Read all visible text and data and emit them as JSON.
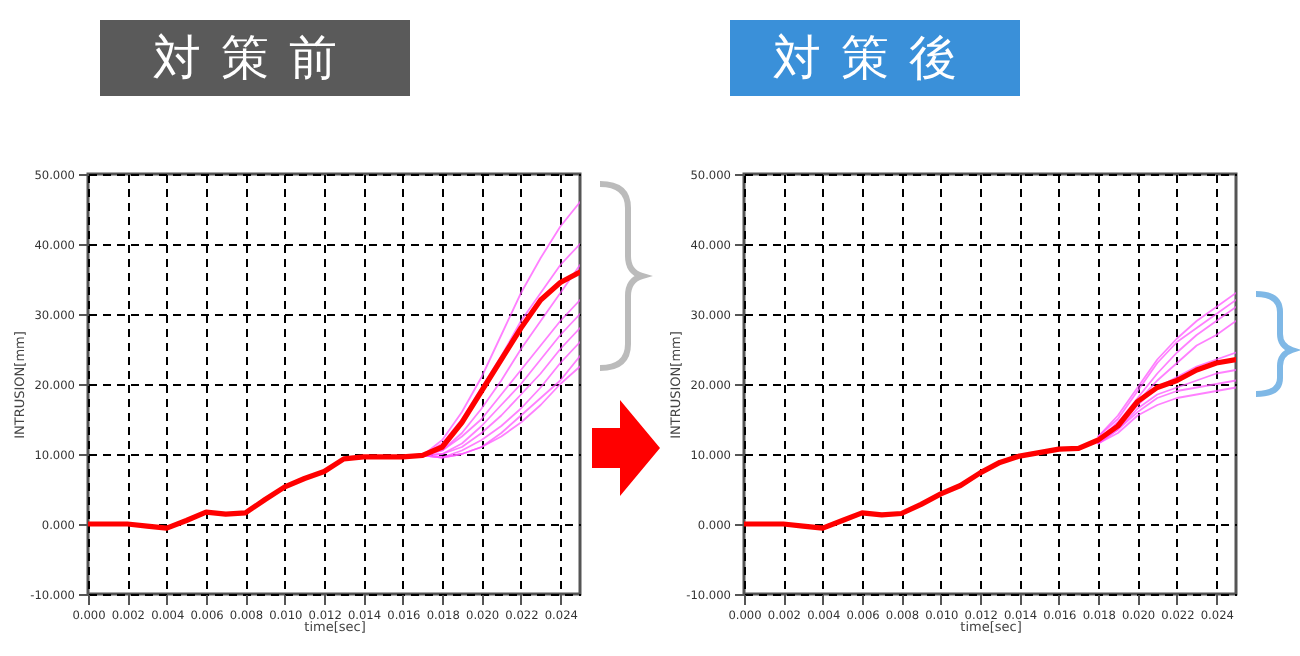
{
  "chart_data": [
    {
      "type": "line",
      "title": "対策前",
      "xlabel": "time[sec]",
      "ylabel": "INTRUSION[mm]",
      "x": [
        0,
        0.001,
        0.002,
        0.003,
        0.004,
        0.005,
        0.006,
        0.007,
        0.008,
        0.009,
        0.01,
        0.011,
        0.012,
        0.013,
        0.014,
        0.015,
        0.016,
        0.017,
        0.018,
        0.019,
        0.02,
        0.021,
        0.022,
        0.023,
        0.024,
        0.025
      ],
      "xlim": [
        0,
        0.025
      ],
      "xticks": [
        {
          "value": 0,
          "label": "0.000"
        },
        {
          "value": 0.002,
          "label": "0.002"
        },
        {
          "value": 0.004,
          "label": "0.004"
        },
        {
          "value": 0.006,
          "label": "0.006"
        },
        {
          "value": 0.008,
          "label": "0.008"
        },
        {
          "value": 0.01,
          "label": "0.010"
        },
        {
          "value": 0.012,
          "label": "0.012"
        },
        {
          "value": 0.014,
          "label": "0.014"
        },
        {
          "value": 0.016,
          "label": "0.016"
        },
        {
          "value": 0.018,
          "label": "0.018"
        },
        {
          "value": 0.02,
          "label": "0.020"
        },
        {
          "value": 0.022,
          "label": "0.022"
        },
        {
          "value": 0.024,
          "label": "0.024"
        }
      ],
      "ylim": [
        -10,
        50
      ],
      "yticks": [
        {
          "value": -10,
          "label": "-10.000"
        },
        {
          "value": 0,
          "label": "0.000"
        },
        {
          "value": 10,
          "label": "10.000"
        },
        {
          "value": 20,
          "label": "20.000"
        },
        {
          "value": 30,
          "label": "30.000"
        },
        {
          "value": 40,
          "label": "40.000"
        },
        {
          "value": 50,
          "label": "50.000"
        }
      ],
      "grid": true,
      "legend": false,
      "line_style": "solid",
      "series": [
        {
          "color": "#ff55ff",
          "values": [
            null,
            null,
            null,
            null,
            null,
            null,
            null,
            null,
            null,
            null,
            null,
            null,
            null,
            null,
            null,
            null,
            null,
            9.8,
            12,
            16,
            21,
            27,
            33,
            38,
            42.5,
            46
          ]
        },
        {
          "color": "#ff55ff",
          "values": [
            null,
            null,
            null,
            null,
            null,
            null,
            null,
            null,
            null,
            null,
            null,
            null,
            null,
            null,
            null,
            null,
            null,
            9.8,
            11.5,
            15,
            19.5,
            24,
            29,
            33,
            37,
            40
          ]
        },
        {
          "color": "#ff55ff",
          "values": [
            null,
            null,
            null,
            null,
            null,
            null,
            null,
            null,
            null,
            null,
            null,
            null,
            null,
            null,
            null,
            null,
            null,
            9.8,
            10.5,
            13,
            16.5,
            20.5,
            25,
            29,
            33,
            37
          ]
        },
        {
          "color": "#ff55ff",
          "values": [
            null,
            null,
            null,
            null,
            null,
            null,
            null,
            null,
            null,
            null,
            null,
            null,
            null,
            null,
            null,
            null,
            null,
            9.8,
            10.5,
            12.5,
            15,
            18.5,
            22,
            25.5,
            29,
            32
          ]
        },
        {
          "color": "#ff55ff",
          "values": [
            null,
            null,
            null,
            null,
            null,
            null,
            null,
            null,
            null,
            null,
            null,
            null,
            null,
            null,
            null,
            null,
            null,
            9.8,
            10,
            11.5,
            14,
            17,
            20,
            23.5,
            27,
            30
          ]
        },
        {
          "color": "#ff55ff",
          "values": [
            null,
            null,
            null,
            null,
            null,
            null,
            null,
            null,
            null,
            null,
            null,
            null,
            null,
            null,
            null,
            null,
            null,
            9.8,
            10,
            11,
            13,
            15.5,
            18.5,
            21.5,
            25,
            28
          ]
        },
        {
          "color": "#ff55ff",
          "values": [
            null,
            null,
            null,
            null,
            null,
            null,
            null,
            null,
            null,
            null,
            null,
            null,
            null,
            null,
            null,
            null,
            null,
            9.8,
            9.5,
            10.5,
            12,
            14,
            16.5,
            19.5,
            23,
            26
          ]
        },
        {
          "color": "#ff55ff",
          "values": [
            null,
            null,
            null,
            null,
            null,
            null,
            null,
            null,
            null,
            null,
            null,
            null,
            null,
            null,
            null,
            null,
            null,
            9.8,
            9.5,
            10,
            11,
            13,
            15.5,
            18,
            20.5,
            24
          ]
        },
        {
          "color": "#ff55ff",
          "values": [
            null,
            null,
            null,
            null,
            null,
            null,
            null,
            null,
            null,
            null,
            null,
            null,
            null,
            null,
            null,
            null,
            null,
            9.8,
            9.5,
            10,
            11,
            12.5,
            14.5,
            17,
            20,
            22.5
          ]
        },
        {
          "color": "#ff0000",
          "values": [
            0,
            0,
            0,
            -0.3,
            -0.6,
            0.5,
            1.7,
            1.4,
            1.6,
            3.5,
            5.3,
            6.5,
            7.5,
            9.3,
            9.6,
            9.6,
            9.6,
            9.8,
            11,
            14.5,
            19,
            23.5,
            28,
            32,
            34.5,
            36
          ]
        }
      ]
    },
    {
      "type": "line",
      "title": "対策後",
      "xlabel": "time[sec]",
      "ylabel": "INTRUSION[mm]",
      "x": [
        0,
        0.001,
        0.002,
        0.003,
        0.004,
        0.005,
        0.006,
        0.007,
        0.008,
        0.009,
        0.01,
        0.011,
        0.012,
        0.013,
        0.014,
        0.015,
        0.016,
        0.017,
        0.018,
        0.019,
        0.02,
        0.021,
        0.022,
        0.023,
        0.024,
        0.025
      ],
      "xlim": [
        0,
        0.025
      ],
      "xticks": [
        {
          "value": 0,
          "label": "0.000"
        },
        {
          "value": 0.002,
          "label": "0.002"
        },
        {
          "value": 0.004,
          "label": "0.004"
        },
        {
          "value": 0.006,
          "label": "0.006"
        },
        {
          "value": 0.008,
          "label": "0.008"
        },
        {
          "value": 0.01,
          "label": "0.010"
        },
        {
          "value": 0.012,
          "label": "0.012"
        },
        {
          "value": 0.014,
          "label": "0.014"
        },
        {
          "value": 0.016,
          "label": "0.016"
        },
        {
          "value": 0.018,
          "label": "0.018"
        },
        {
          "value": 0.02,
          "label": "0.020"
        },
        {
          "value": 0.022,
          "label": "0.022"
        },
        {
          "value": 0.024,
          "label": "0.024"
        }
      ],
      "ylim": [
        -10,
        50
      ],
      "yticks": [
        {
          "value": -10,
          "label": "-10.000"
        },
        {
          "value": 0,
          "label": "0.000"
        },
        {
          "value": 10,
          "label": "10.000"
        },
        {
          "value": 20,
          "label": "20.000"
        },
        {
          "value": 30,
          "label": "30.000"
        },
        {
          "value": 40,
          "label": "40.000"
        },
        {
          "value": 50,
          "label": "50.000"
        }
      ],
      "grid": true,
      "legend": false,
      "line_style": "solid",
      "series": [
        {
          "color": "#ff55ff",
          "values": [
            null,
            null,
            null,
            null,
            null,
            null,
            null,
            null,
            null,
            null,
            null,
            null,
            null,
            null,
            null,
            null,
            null,
            null,
            12.5,
            15.5,
            19.5,
            23.5,
            26.5,
            29,
            31,
            33
          ]
        },
        {
          "color": "#ff55ff",
          "values": [
            null,
            null,
            null,
            null,
            null,
            null,
            null,
            null,
            null,
            null,
            null,
            null,
            null,
            null,
            null,
            null,
            null,
            null,
            12.5,
            15,
            19,
            23,
            26,
            28,
            30,
            32
          ]
        },
        {
          "color": "#ff55ff",
          "values": [
            null,
            null,
            null,
            null,
            null,
            null,
            null,
            null,
            null,
            null,
            null,
            null,
            null,
            null,
            null,
            null,
            null,
            null,
            12,
            14.5,
            18,
            21.5,
            24.5,
            27,
            29,
            31
          ]
        },
        {
          "color": "#ff55ff",
          "values": [
            null,
            null,
            null,
            null,
            null,
            null,
            null,
            null,
            null,
            null,
            null,
            null,
            null,
            null,
            null,
            null,
            null,
            null,
            12,
            14.5,
            17.5,
            20.5,
            23,
            25.5,
            27,
            29
          ]
        },
        {
          "color": "#ff55ff",
          "values": [
            null,
            null,
            null,
            null,
            null,
            null,
            null,
            null,
            null,
            null,
            null,
            null,
            null,
            null,
            null,
            null,
            null,
            null,
            12,
            14,
            17,
            19.5,
            21,
            22.5,
            23.5,
            24.5
          ]
        },
        {
          "color": "#ff55ff",
          "values": [
            null,
            null,
            null,
            null,
            null,
            null,
            null,
            null,
            null,
            null,
            null,
            null,
            null,
            null,
            null,
            null,
            null,
            null,
            11.5,
            13.5,
            16.5,
            18.5,
            19.5,
            20.5,
            21.5,
            22
          ]
        },
        {
          "color": "#ff55ff",
          "values": [
            null,
            null,
            null,
            null,
            null,
            null,
            null,
            null,
            null,
            null,
            null,
            null,
            null,
            null,
            null,
            null,
            null,
            null,
            11.5,
            13.5,
            16,
            18,
            19,
            19.5,
            20,
            20.5
          ]
        },
        {
          "color": "#ff55ff",
          "values": [
            null,
            null,
            null,
            null,
            null,
            null,
            null,
            null,
            null,
            null,
            null,
            null,
            null,
            null,
            null,
            null,
            null,
            null,
            11.5,
            13,
            15.5,
            17,
            18,
            18.5,
            19,
            19.5
          ]
        },
        {
          "color": "#ff0000",
          "values": [
            0,
            0,
            0,
            -0.3,
            -0.6,
            0.5,
            1.6,
            1.3,
            1.5,
            2.8,
            4.3,
            5.5,
            7.3,
            8.8,
            9.7,
            10.2,
            10.7,
            10.8,
            12,
            14,
            17.5,
            19.5,
            20.5,
            22,
            23,
            23.5
          ]
        }
      ]
    }
  ]
}
